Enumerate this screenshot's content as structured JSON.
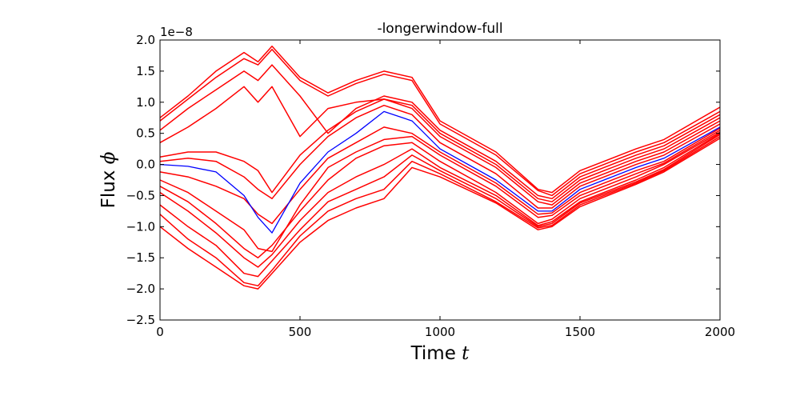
{
  "chart_data": {
    "type": "line",
    "title": "-longerwindow-full",
    "xlabel": "Time",
    "xlabel_var": "t",
    "ylabel": "Flux",
    "ylabel_var": "ϕ",
    "offset_text": "1e−8",
    "xlim": [
      0,
      2000
    ],
    "ylim": [
      -2.5,
      2.0
    ],
    "xticks": [
      0,
      500,
      1000,
      1500,
      2000
    ],
    "yticks": [
      -2.5,
      -2.0,
      -1.5,
      -1.0,
      -0.5,
      0.0,
      0.5,
      1.0,
      1.5,
      2.0
    ],
    "xtick_labels": [
      "0",
      "500",
      "1000",
      "1500",
      "2000"
    ],
    "ytick_labels": [
      "−2.5",
      "−2.0",
      "−1.5",
      "−1.0",
      "−0.5",
      "0.0",
      "0.5",
      "1.0",
      "1.5",
      "2.0"
    ],
    "grid": false,
    "x": [
      0,
      100,
      200,
      300,
      350,
      400,
      500,
      600,
      700,
      800,
      900,
      1000,
      1200,
      1350,
      1400,
      1500,
      1700,
      1800,
      2000
    ],
    "series": [
      {
        "color": "#ff0000",
        "values": [
          0.75,
          1.1,
          1.5,
          1.8,
          1.65,
          1.9,
          1.4,
          1.15,
          1.35,
          1.5,
          1.4,
          0.7,
          0.2,
          -0.4,
          -0.45,
          -0.1,
          0.25,
          0.4,
          0.92
        ]
      },
      {
        "color": "#ff0000",
        "values": [
          0.7,
          1.05,
          1.4,
          1.7,
          1.6,
          1.85,
          1.35,
          1.1,
          1.3,
          1.45,
          1.35,
          0.65,
          0.15,
          -0.42,
          -0.5,
          -0.15,
          0.2,
          0.35,
          0.85
        ]
      },
      {
        "color": "#ff0000",
        "values": [
          0.55,
          0.9,
          1.2,
          1.5,
          1.35,
          1.6,
          1.1,
          0.5,
          0.9,
          1.1,
          1.0,
          0.55,
          0.05,
          -0.5,
          -0.55,
          -0.2,
          0.15,
          0.3,
          0.8
        ]
      },
      {
        "color": "#ff0000",
        "values": [
          0.35,
          0.6,
          0.9,
          1.25,
          1.0,
          1.25,
          0.45,
          0.9,
          1.0,
          1.05,
          0.95,
          0.5,
          0.0,
          -0.55,
          -0.6,
          -0.25,
          0.1,
          0.25,
          0.75
        ]
      },
      {
        "color": "#ff0000",
        "values": [
          0.12,
          0.2,
          0.2,
          0.05,
          -0.1,
          -0.45,
          0.15,
          0.55,
          0.85,
          1.05,
          0.9,
          0.45,
          -0.05,
          -0.6,
          -0.65,
          -0.3,
          0.05,
          0.2,
          0.7
        ]
      },
      {
        "color": "#ff0000",
        "values": [
          0.05,
          0.1,
          0.05,
          -0.2,
          -0.4,
          -0.55,
          0.0,
          0.45,
          0.75,
          0.95,
          0.8,
          0.35,
          -0.15,
          -0.7,
          -0.7,
          -0.35,
          0.0,
          0.15,
          0.65
        ]
      },
      {
        "color": "#0000ff",
        "values": [
          0.0,
          -0.03,
          -0.12,
          -0.5,
          -0.85,
          -1.1,
          -0.3,
          0.2,
          0.5,
          0.85,
          0.7,
          0.25,
          -0.25,
          -0.75,
          -0.75,
          -0.4,
          -0.05,
          0.1,
          0.6
        ]
      },
      {
        "color": "#ff0000",
        "values": [
          -0.12,
          -0.2,
          -0.35,
          -0.55,
          -0.8,
          -0.95,
          -0.4,
          0.1,
          0.35,
          0.6,
          0.5,
          0.2,
          -0.3,
          -0.8,
          -0.78,
          -0.45,
          -0.1,
          0.05,
          0.58
        ]
      },
      {
        "color": "#ff0000",
        "values": [
          -0.25,
          -0.45,
          -0.75,
          -1.05,
          -1.35,
          -1.4,
          -0.65,
          -0.05,
          0.2,
          0.4,
          0.45,
          0.15,
          -0.35,
          -0.85,
          -0.82,
          -0.5,
          -0.15,
          0.02,
          0.55
        ]
      },
      {
        "color": "#ff0000",
        "values": [
          -0.35,
          -0.6,
          -0.95,
          -1.35,
          -1.5,
          -1.3,
          -0.75,
          -0.25,
          0.1,
          0.3,
          0.35,
          0.05,
          -0.45,
          -0.95,
          -0.88,
          -0.55,
          -0.2,
          0.0,
          0.52
        ]
      },
      {
        "color": "#ff0000",
        "values": [
          -0.45,
          -0.75,
          -1.1,
          -1.5,
          -1.65,
          -1.45,
          -0.9,
          -0.45,
          -0.2,
          0.0,
          0.25,
          -0.05,
          -0.5,
          -0.98,
          -0.92,
          -0.6,
          -0.25,
          -0.05,
          0.5
        ]
      },
      {
        "color": "#ff0000",
        "values": [
          -0.65,
          -1.0,
          -1.3,
          -1.75,
          -1.8,
          -1.55,
          -1.05,
          -0.6,
          -0.4,
          -0.2,
          0.15,
          -0.1,
          -0.55,
          -1.0,
          -0.95,
          -0.62,
          -0.28,
          -0.08,
          0.48
        ]
      },
      {
        "color": "#ff0000",
        "values": [
          -0.8,
          -1.2,
          -1.5,
          -1.9,
          -1.95,
          -1.7,
          -1.15,
          -0.75,
          -0.55,
          -0.4,
          0.05,
          -0.15,
          -0.6,
          -1.02,
          -0.98,
          -0.65,
          -0.3,
          -0.1,
          0.45
        ]
      },
      {
        "color": "#ff0000",
        "values": [
          -1.0,
          -1.35,
          -1.65,
          -1.95,
          -2.0,
          -1.75,
          -1.25,
          -0.9,
          -0.7,
          -0.55,
          -0.05,
          -0.2,
          -0.62,
          -1.05,
          -1.0,
          -0.68,
          -0.32,
          -0.12,
          0.42
        ]
      }
    ]
  }
}
